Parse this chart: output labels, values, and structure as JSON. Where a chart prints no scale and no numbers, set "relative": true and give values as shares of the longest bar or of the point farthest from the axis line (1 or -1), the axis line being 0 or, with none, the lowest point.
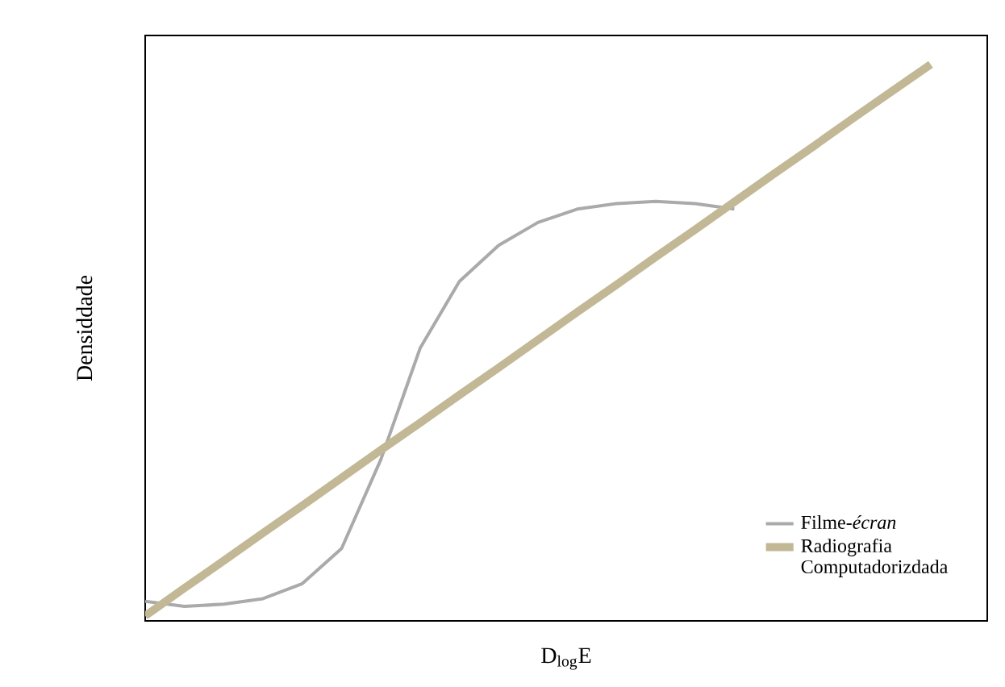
{
  "chart_data": {
    "type": "line",
    "relative": true,
    "xlabel": "D$_{log}$E",
    "ylabel": "Densiddade",
    "legend": "bottom right",
    "categories": [
      null,
      null,
      null,
      null,
      null,
      null,
      null,
      null,
      null,
      null,
      null,
      null,
      null,
      null,
      null,
      null,
      null,
      null,
      null,
      null,
      null
    ],
    "series": [
      {
        "name": "Filme-*écran*",
        "color": "#aaaaaa",
        "values": [
          0.035,
          0.026,
          0.03,
          0.04,
          0.067,
          0.13,
          0.29,
          0.49,
          0.61,
          0.675,
          0.716,
          0.74,
          0.75,
          0.754,
          0.75,
          0.74,
          null,
          null,
          null,
          null,
          null
        ]
      },
      {
        "name": "Radiografia Computadorizdada",
        "color": "#c2b896",
        "values": [
          0.009,
          0.059,
          0.108,
          0.158,
          0.207,
          0.257,
          0.307,
          0.356,
          0.406,
          0.455,
          0.505,
          0.555,
          0.604,
          0.654,
          0.703,
          0.753,
          0.803,
          0.852,
          0.902,
          0.951,
          1.0
        ]
      }
    ]
  }
}
